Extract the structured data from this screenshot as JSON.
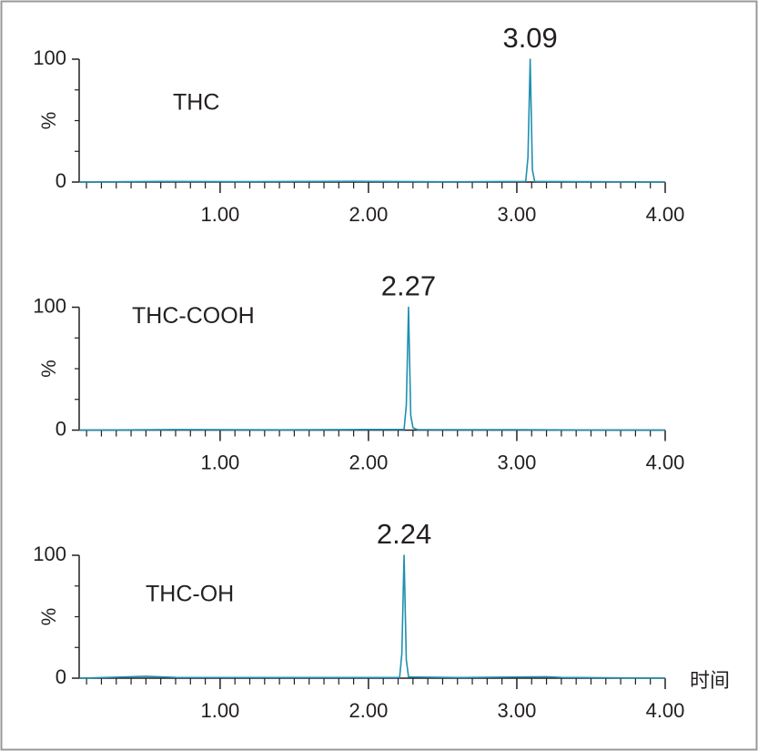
{
  "chart_data": [
    {
      "type": "line",
      "label": "THC",
      "ylabel": "%",
      "x": [
        0.05,
        0.6,
        1.2,
        1.9,
        2.5,
        3.06,
        3.075,
        3.09,
        3.105,
        3.12,
        3.5,
        4.0
      ],
      "series": [
        {
          "color": "#1f8fb0",
          "values": [
            0,
            0.5,
            0.3,
            0.6,
            0.2,
            0.5,
            20,
            100,
            10,
            0.5,
            0.3,
            0
          ]
        }
      ],
      "annotations": [
        {
          "x": 3.09,
          "y": 100,
          "text": "3.09"
        }
      ],
      "xlim": [
        0.05,
        4.0
      ],
      "ylim": [
        0,
        100
      ],
      "xticks": [
        {
          "value": 1,
          "label": "1.00"
        },
        {
          "value": 2,
          "label": "2.00"
        },
        {
          "value": 3,
          "label": "3.00"
        },
        {
          "value": 4,
          "label": "4.00"
        }
      ],
      "minor_xticks": [
        0.1,
        0.2,
        0.3,
        0.4,
        0.5,
        0.6,
        0.7,
        0.8,
        0.9,
        1.1,
        1.2,
        1.3,
        1.4,
        1.5,
        1.6,
        1.7,
        1.8,
        1.9,
        2.1,
        2.2,
        2.3,
        2.4,
        2.5,
        2.6,
        2.7,
        2.8,
        2.9,
        3.1,
        3.2,
        3.3,
        3.4,
        3.5,
        3.6,
        3.7,
        3.8,
        3.9
      ],
      "yticks": [
        0,
        100
      ],
      "minor_yticks": [
        25,
        50,
        75
      ]
    },
    {
      "type": "line",
      "label": "THC-COOH",
      "ylabel": "%",
      "x": [
        0.05,
        0.7,
        1.4,
        2.0,
        2.24,
        2.255,
        2.27,
        2.285,
        2.3,
        2.33,
        3.0,
        4.0
      ],
      "series": [
        {
          "color": "#1f8fb0",
          "values": [
            0,
            0.4,
            0.2,
            0.5,
            0.5,
            20,
            100,
            12,
            2,
            0.4,
            0.3,
            0
          ]
        }
      ],
      "annotations": [
        {
          "x": 2.27,
          "y": 100,
          "text": "2.27"
        }
      ],
      "xlim": [
        0.05,
        4.0
      ],
      "ylim": [
        0,
        100
      ],
      "xticks": [
        {
          "value": 1,
          "label": "1.00"
        },
        {
          "value": 2,
          "label": "2.00"
        },
        {
          "value": 3,
          "label": "3.00"
        },
        {
          "value": 4,
          "label": "4.00"
        }
      ],
      "minor_xticks": [
        0.1,
        0.2,
        0.3,
        0.4,
        0.5,
        0.6,
        0.7,
        0.8,
        0.9,
        1.1,
        1.2,
        1.3,
        1.4,
        1.5,
        1.6,
        1.7,
        1.8,
        1.9,
        2.1,
        2.2,
        2.3,
        2.4,
        2.5,
        2.6,
        2.7,
        2.8,
        2.9,
        3.1,
        3.2,
        3.3,
        3.4,
        3.5,
        3.6,
        3.7,
        3.8,
        3.9
      ],
      "yticks": [
        0,
        100
      ],
      "minor_yticks": [
        25,
        50,
        75
      ]
    },
    {
      "type": "line",
      "label": "THC-OH",
      "ylabel": "%",
      "xlabel": "时间",
      "x": [
        0.05,
        0.3,
        0.5,
        0.7,
        1.5,
        2.21,
        2.225,
        2.24,
        2.255,
        2.27,
        2.6,
        3.2,
        3.3,
        4.0
      ],
      "series": [
        {
          "color": "#1f8fb0",
          "values": [
            0,
            0.8,
            1.5,
            0.6,
            0.5,
            0.5,
            20,
            100,
            15,
            1,
            0.5,
            1.2,
            0.6,
            0
          ]
        }
      ],
      "annotations": [
        {
          "x": 2.24,
          "y": 100,
          "text": "2.24"
        }
      ],
      "xlim": [
        0.05,
        4.0
      ],
      "ylim": [
        0,
        100
      ],
      "xticks": [
        {
          "value": 1,
          "label": "1.00"
        },
        {
          "value": 2,
          "label": "2.00"
        },
        {
          "value": 3,
          "label": "3.00"
        },
        {
          "value": 4,
          "label": "4.00"
        }
      ],
      "minor_xticks": [
        0.1,
        0.2,
        0.3,
        0.4,
        0.5,
        0.6,
        0.7,
        0.8,
        0.9,
        1.1,
        1.2,
        1.3,
        1.4,
        1.5,
        1.6,
        1.7,
        1.8,
        1.9,
        2.1,
        2.2,
        2.3,
        2.4,
        2.5,
        2.6,
        2.7,
        2.8,
        2.9,
        3.1,
        3.2,
        3.3,
        3.4,
        3.5,
        3.6,
        3.7,
        3.8,
        3.9
      ],
      "yticks": [
        0,
        100
      ],
      "minor_yticks": [
        25,
        50,
        75
      ]
    }
  ]
}
